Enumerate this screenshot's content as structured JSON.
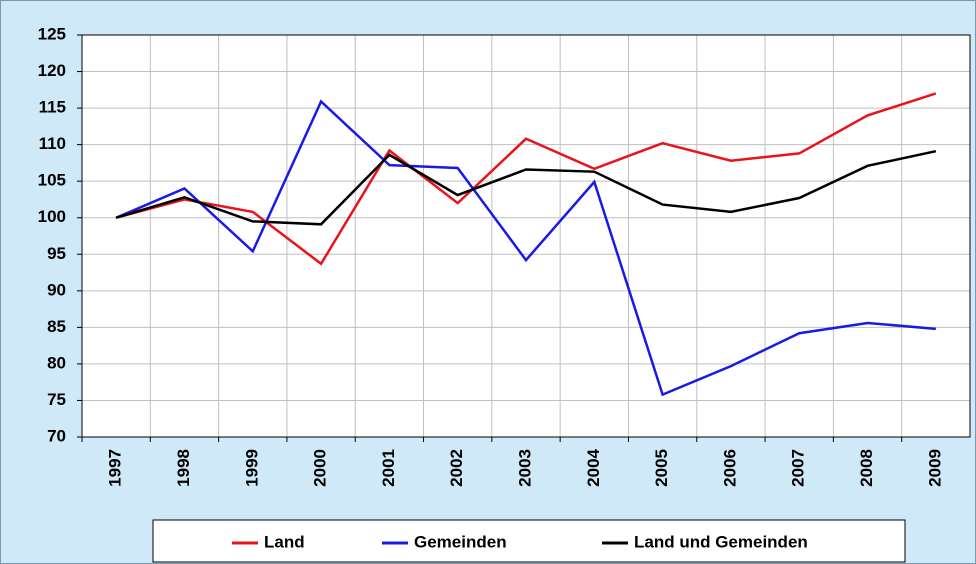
{
  "chart_data": {
    "type": "line",
    "categories": [
      "1997",
      "1998",
      "1999",
      "2000",
      "2001",
      "2002",
      "2003",
      "2004",
      "2005",
      "2006",
      "2007",
      "2008",
      "2009"
    ],
    "series": [
      {
        "name": "Land",
        "color": "#e8141c",
        "values": [
          100,
          102.5,
          100.8,
          93.7,
          109.2,
          102,
          110.8,
          106.7,
          110.2,
          107.8,
          108.8,
          114,
          117
        ]
      },
      {
        "name": "Gemeinden",
        "color": "#1a1ae6",
        "values": [
          100,
          104,
          95.4,
          115.9,
          107.2,
          106.8,
          94.2,
          104.9,
          75.8,
          79.7,
          84.2,
          85.6,
          84.8
        ]
      },
      {
        "name": "Land und Gemeinden",
        "color": "#000000",
        "values": [
          100,
          102.8,
          99.5,
          99.1,
          108.6,
          103.1,
          106.6,
          106.3,
          101.8,
          100.8,
          102.7,
          107.1,
          109.1
        ]
      }
    ],
    "ylim": [
      70,
      125
    ],
    "yticks": [
      70,
      75,
      80,
      85,
      90,
      95,
      100,
      105,
      110,
      115,
      120,
      125
    ],
    "grid": true,
    "legend": "bottom"
  }
}
